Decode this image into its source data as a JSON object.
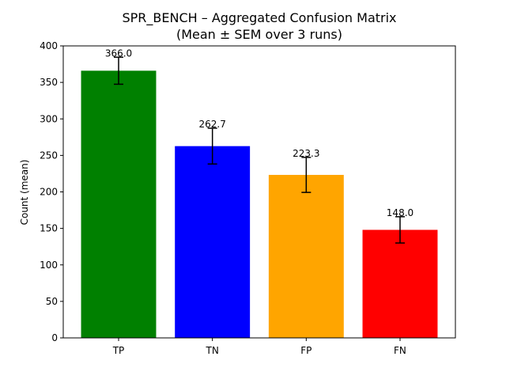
{
  "chart_data": {
    "type": "bar",
    "title": "SPR_BENCH – Aggregated Confusion Matrix",
    "subtitle": "(Mean ± SEM over 3 runs)",
    "xlabel": "",
    "ylabel": "Count (mean)",
    "categories": [
      "TP",
      "TN",
      "FP",
      "FN"
    ],
    "values": [
      366.0,
      262.7,
      223.3,
      148.0
    ],
    "errors": [
      18.5,
      24.5,
      24.0,
      18.0
    ],
    "data_labels": [
      "366.0",
      "262.7",
      "223.3",
      "148.0"
    ],
    "colors": [
      "#008000",
      "#0000ff",
      "#ffa500",
      "#ff0000"
    ],
    "ylim": [
      0,
      400
    ],
    "yticks": [
      0,
      50,
      100,
      150,
      200,
      250,
      300,
      350,
      400
    ],
    "grid": false,
    "legend": "none"
  }
}
